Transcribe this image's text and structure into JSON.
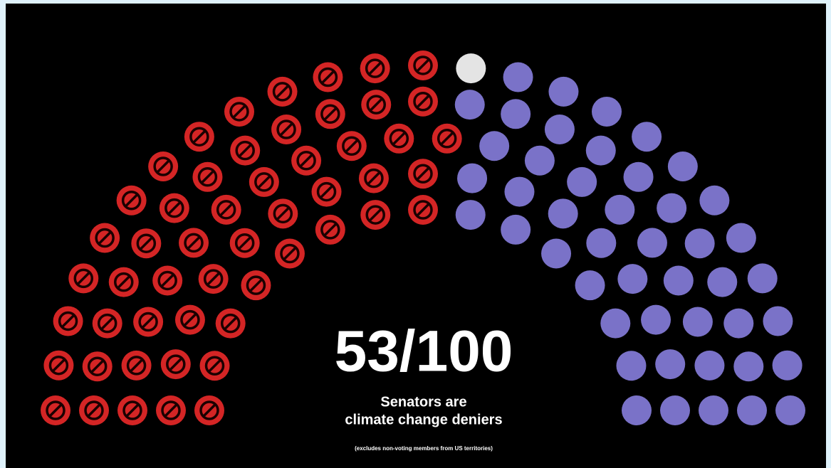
{
  "chart_data": {
    "type": "parliament",
    "headline": "53/100",
    "subtitle": [
      "Senators are",
      "climate change deniers"
    ],
    "note": "(excludes non-voting members from US territories)",
    "values": [
      53,
      1,
      46
    ],
    "colors": [
      "#d42525",
      "#e4e4e4",
      "#7a72c8"
    ],
    "icons": [
      "prohibited",
      "none",
      "none"
    ]
  }
}
